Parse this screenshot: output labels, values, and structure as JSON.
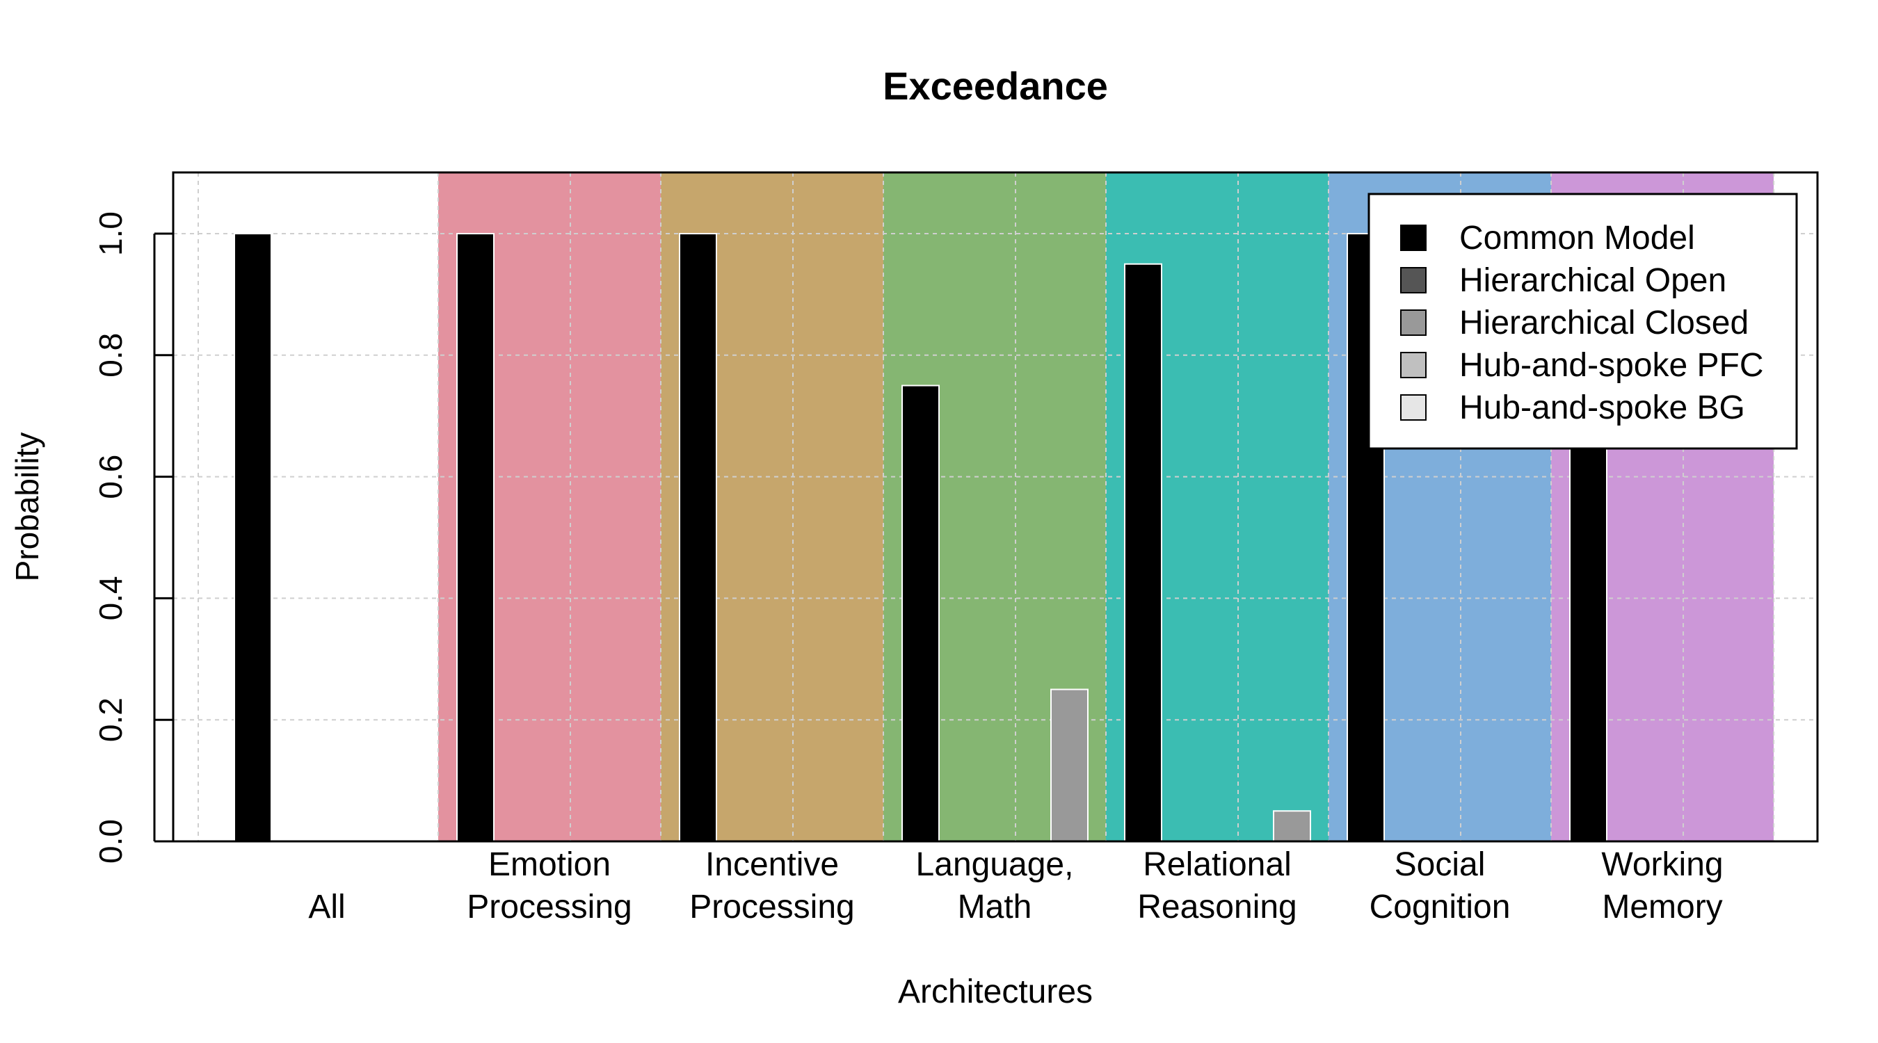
{
  "chart_data": {
    "type": "bar",
    "title": "Exceedance",
    "xlabel": "Architectures",
    "ylabel": "Probability",
    "ylim": [
      0,
      1.1
    ],
    "yticks": [
      "0.0",
      "0.2",
      "0.4",
      "0.6",
      "0.8",
      "1.0"
    ],
    "ytick_values": [
      0,
      0.2,
      0.4,
      0.6,
      0.8,
      1.0
    ],
    "grid": true,
    "legend_position": "top-right",
    "categories": [
      {
        "lines": [
          "",
          "All"
        ],
        "band_color": "#ffffff"
      },
      {
        "lines": [
          "Emotion",
          "Processing"
        ],
        "band_color": "#e3929f"
      },
      {
        "lines": [
          "Incentive",
          "Processing"
        ],
        "band_color": "#c6a66c"
      },
      {
        "lines": [
          "Language,",
          "Math"
        ],
        "band_color": "#85b672"
      },
      {
        "lines": [
          "Relational",
          "Reasoning"
        ],
        "band_color": "#3bbdb2"
      },
      {
        "lines": [
          "Social",
          "Cognition"
        ],
        "band_color": "#7eaedb"
      },
      {
        "lines": [
          "Working",
          "Memory"
        ],
        "band_color": "#cc97d8"
      }
    ],
    "series": [
      {
        "name": "Common Model",
        "color": "#000000",
        "values": [
          1.0,
          1.0,
          1.0,
          0.75,
          0.95,
          1.0,
          1.0
        ]
      },
      {
        "name": "Hierarchical Open",
        "color": "#555555",
        "values": [
          0,
          0,
          0,
          0,
          0,
          0,
          0
        ]
      },
      {
        "name": "Hierarchical Closed",
        "color": "#999999",
        "values": [
          0,
          0,
          0,
          0.25,
          0.05,
          0,
          0
        ]
      },
      {
        "name": "Hub-and-spoke PFC",
        "color": "#c0c0c0",
        "values": [
          0,
          0,
          0,
          0,
          0,
          0,
          0
        ]
      },
      {
        "name": "Hub-and-spoke BG",
        "color": "#e6e6e6",
        "values": [
          0,
          0,
          0,
          0,
          0,
          0,
          0
        ]
      }
    ]
  }
}
